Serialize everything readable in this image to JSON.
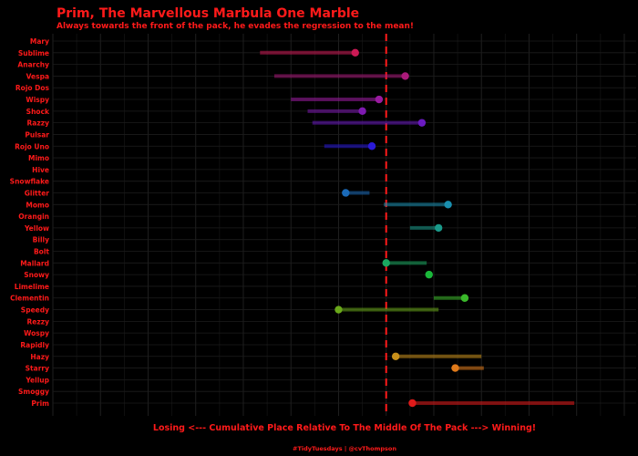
{
  "chart_data": {
    "type": "dumbbell",
    "title": "Prim, The Marvellous Marbula One Marble",
    "subtitle": "Always towards the front of the pack, he evades the regression to the mean!",
    "xlabel": "Losing <--- Cumulative Place Relative To The Middle Of The Pack ---> Winning!",
    "caption": "#TidyTuesdays | @cvThompson",
    "xlim": [
      -14,
      10.5
    ],
    "reference_x": 0,
    "grid": true,
    "categories": [
      "Mary",
      "Sublime",
      "Anarchy",
      "Vespa",
      "Rojo Dos",
      "Wispy",
      "Shock",
      "Razzy",
      "Pulsar",
      "Rojo Uno",
      "Mimo",
      "Hive",
      "Snowflake",
      "Glitter",
      "Momo",
      "Orangin",
      "Yellow",
      "Billy",
      "Bolt",
      "Mallard",
      "Snowy",
      "Limelime",
      "Clementin",
      "Speedy",
      "Rezzy",
      "Wospy",
      "Rapidly",
      "Hazy",
      "Starry",
      "Yellup",
      "Smoggy",
      "Prim"
    ],
    "marbles": [
      {
        "name": "Sublime",
        "start": -5.3,
        "end": -1.3,
        "color": "#cc1a55"
      },
      {
        "name": "Vespa",
        "start": -4.7,
        "end": 0.8,
        "color": "#aa1a7a"
      },
      {
        "name": "Wispy",
        "start": -4.0,
        "end": -0.3,
        "color": "#9a1aa0"
      },
      {
        "name": "Shock",
        "start": -3.3,
        "end": -1.0,
        "color": "#7e1ab0"
      },
      {
        "name": "Razzy",
        "start": -3.1,
        "end": 1.5,
        "color": "#6a1ac0"
      },
      {
        "name": "Rojo Uno",
        "start": -2.6,
        "end": -0.6,
        "color": "#2a1ad8"
      },
      {
        "name": "Glitter",
        "start": -0.7,
        "end": -1.7,
        "color": "#1a6ab8"
      },
      {
        "name": "Momo",
        "start": -0.1,
        "end": 2.6,
        "color": "#1a90b0"
      },
      {
        "name": "Yellow",
        "start": 1.0,
        "end": 2.2,
        "color": "#1a9a8a"
      },
      {
        "name": "Mallard",
        "start": 1.7,
        "end": 0.0,
        "color": "#1aa860"
      },
      {
        "name": "Snowy",
        "start": 1.8,
        "end": 1.8,
        "color": "#1ab83a"
      },
      {
        "name": "Clementin",
        "start": 2.0,
        "end": 3.3,
        "color": "#3ab82a"
      },
      {
        "name": "Speedy",
        "start": 2.2,
        "end": -2.0,
        "color": "#6aa81a"
      },
      {
        "name": "Hazy",
        "start": 4.0,
        "end": 0.4,
        "color": "#c8901a"
      },
      {
        "name": "Starry",
        "start": 4.1,
        "end": 2.9,
        "color": "#e07a1a"
      },
      {
        "name": "Prim",
        "start": 7.9,
        "end": 1.1,
        "color": "#e01a1a"
      }
    ]
  }
}
